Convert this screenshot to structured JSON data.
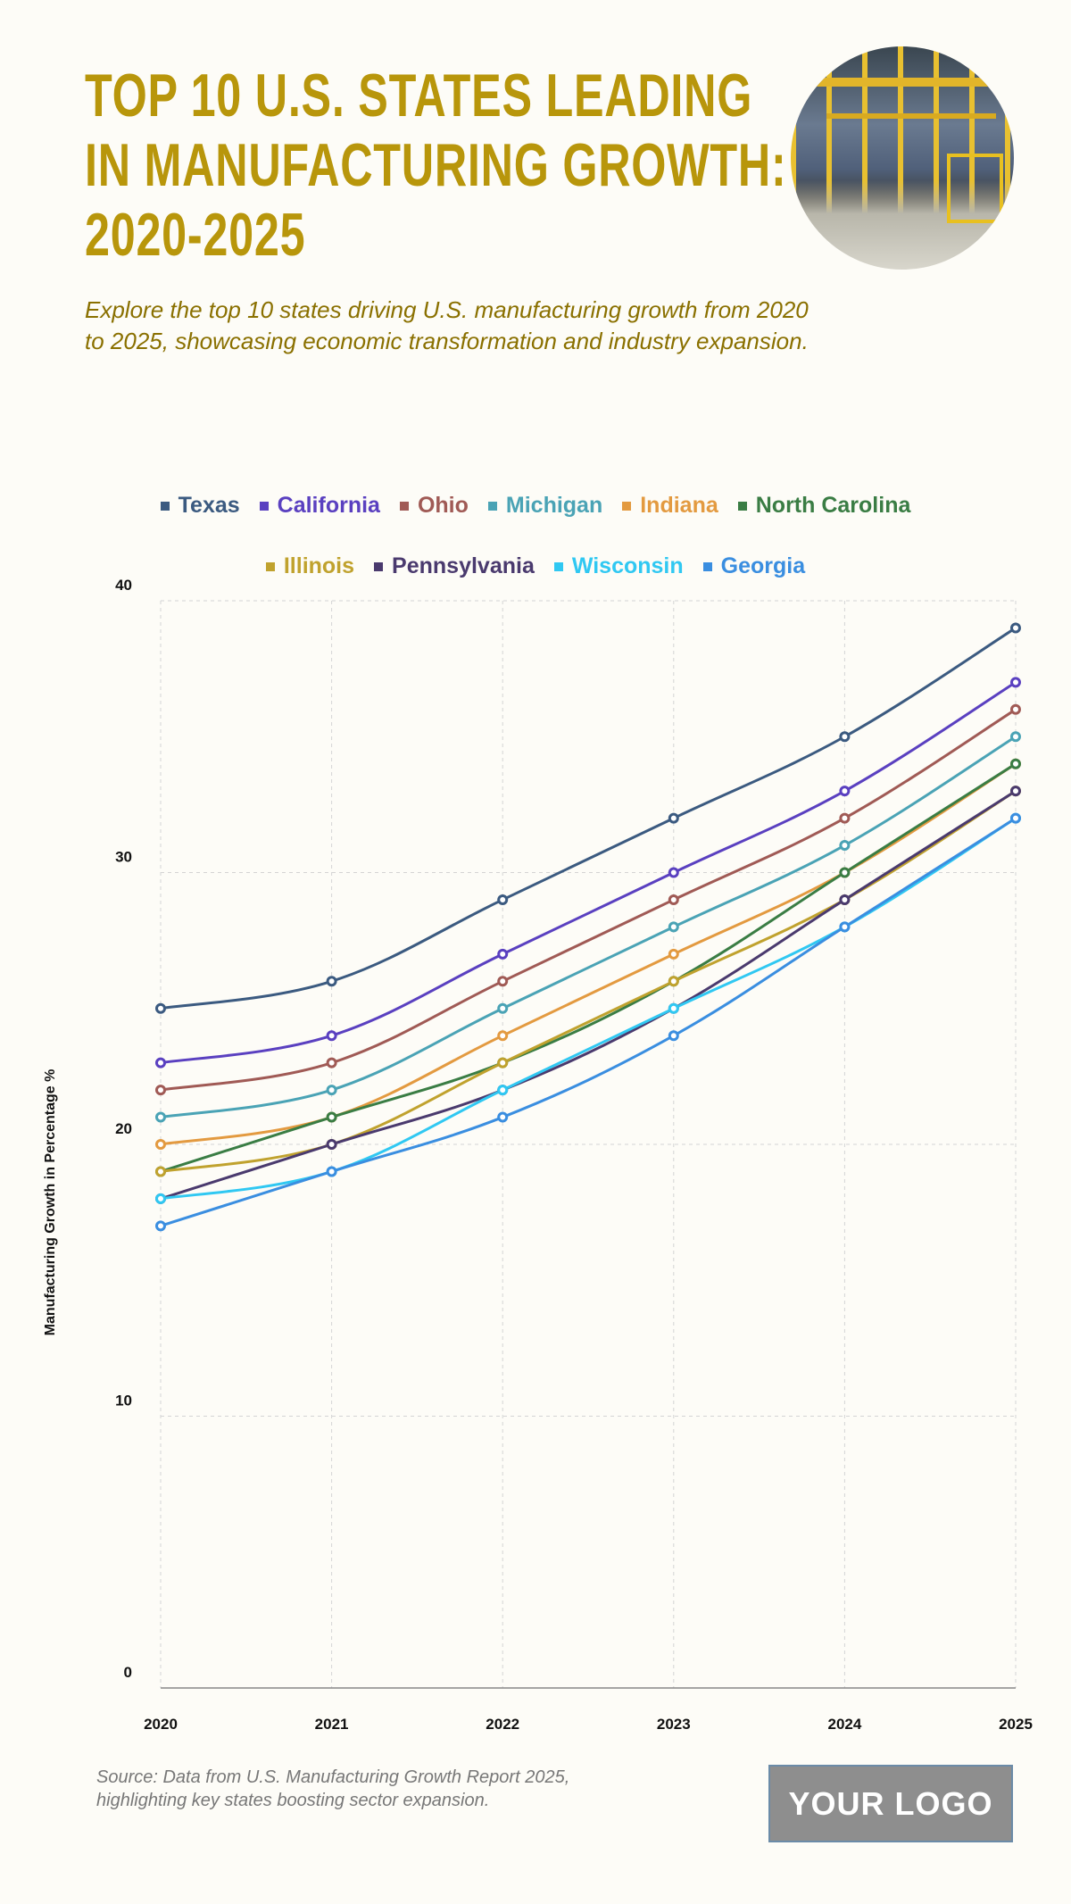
{
  "header": {
    "title_lines": [
      "TOP 10 U.S. STATES LEADING",
      "IN MANUFACTURING GROWTH:",
      "2020-2025"
    ],
    "subtitle": "Explore the top 10 states driving U.S. manufacturing growth from 2020 to 2025, showcasing economic transformation and industry expansion."
  },
  "chart_data": {
    "type": "line",
    "title": "TOP 10 U.S. STATES LEADING IN MANUFACTURING GROWTH: 2020-2025",
    "xlabel": "",
    "ylabel": "Manufacturing Growth in Percentage %",
    "x": [
      "2020",
      "2021",
      "2022",
      "2023",
      "2024",
      "2025"
    ],
    "ylim": [
      0,
      40
    ],
    "yticks": [
      0,
      10,
      20,
      30,
      40
    ],
    "grid": true,
    "legend": "top",
    "series": [
      {
        "name": "Texas",
        "color": "#3b5a80",
        "values": [
          25,
          26,
          29,
          32,
          35,
          39
        ]
      },
      {
        "name": "California",
        "color": "#5a40c0",
        "values": [
          23,
          24,
          27,
          30,
          33,
          37
        ]
      },
      {
        "name": "Ohio",
        "color": "#a05a55",
        "values": [
          22,
          23,
          26,
          29,
          32,
          36
        ]
      },
      {
        "name": "Michigan",
        "color": "#4aa3b5",
        "values": [
          21,
          22,
          25,
          28,
          31,
          35
        ]
      },
      {
        "name": "Indiana",
        "color": "#e39a40",
        "values": [
          20,
          21,
          24,
          27,
          30,
          34
        ]
      },
      {
        "name": "North Carolina",
        "color": "#3a7d44",
        "values": [
          19,
          21,
          23,
          26,
          30,
          34
        ]
      },
      {
        "name": "Illinois",
        "color": "#c0a22e",
        "values": [
          19,
          20,
          23,
          26,
          29,
          33
        ]
      },
      {
        "name": "Pennsylvania",
        "color": "#4a3a6e",
        "values": [
          18,
          20,
          22,
          25,
          29,
          33
        ]
      },
      {
        "name": "Wisconsin",
        "color": "#30c8f2",
        "values": [
          18,
          19,
          22,
          25,
          28,
          32
        ]
      },
      {
        "name": "Georgia",
        "color": "#3a8ee0",
        "values": [
          17,
          19,
          21,
          24,
          28,
          32
        ]
      }
    ]
  },
  "footer": {
    "source_lines": [
      "Source: Data from U.S. Manufacturing Growth Report 2025,",
      "highlighting key states boosting sector expansion."
    ],
    "logo": "YOUR LOGO"
  }
}
